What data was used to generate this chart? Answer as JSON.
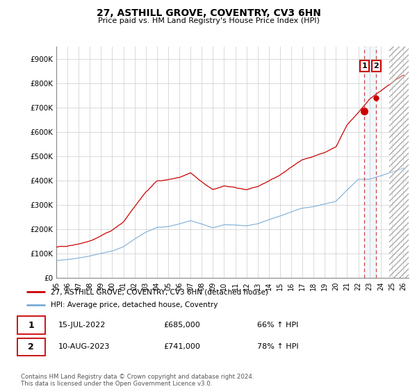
{
  "title": "27, ASTHILL GROVE, COVENTRY, CV3 6HN",
  "subtitle": "Price paid vs. HM Land Registry's House Price Index (HPI)",
  "ylim": [
    0,
    950000
  ],
  "yticks": [
    0,
    100000,
    200000,
    300000,
    400000,
    500000,
    600000,
    700000,
    800000,
    900000
  ],
  "yticklabels": [
    "£0",
    "£100K",
    "£200K",
    "£300K",
    "£400K",
    "£500K",
    "£600K",
    "£700K",
    "£800K",
    "£900K"
  ],
  "hpi_color": "#7aadda",
  "price_color": "#cc0000",
  "background_color": "#ffffff",
  "grid_color": "#cccccc",
  "legend_label_price": "27, ASTHILL GROVE, COVENTRY, CV3 6HN (detached house)",
  "legend_label_hpi": "HPI: Average price, detached house, Coventry",
  "transaction1_date": "15-JUL-2022",
  "transaction1_price": "£685,000",
  "transaction1_pct": "66% ↑ HPI",
  "transaction2_date": "10-AUG-2023",
  "transaction2_price": "£741,000",
  "transaction2_pct": "78% ↑ HPI",
  "footer": "Contains HM Land Registry data © Crown copyright and database right 2024.\nThis data is licensed under the Open Government Licence v3.0.",
  "sale1_x": 2022.54,
  "sale1_y": 685000,
  "sale2_x": 2023.61,
  "sale2_y": 741000,
  "vline1_x": 2022.54,
  "vline2_x": 2023.61,
  "xmin": 1995,
  "xmax": 2026.5,
  "hatch_start": 2024.75
}
